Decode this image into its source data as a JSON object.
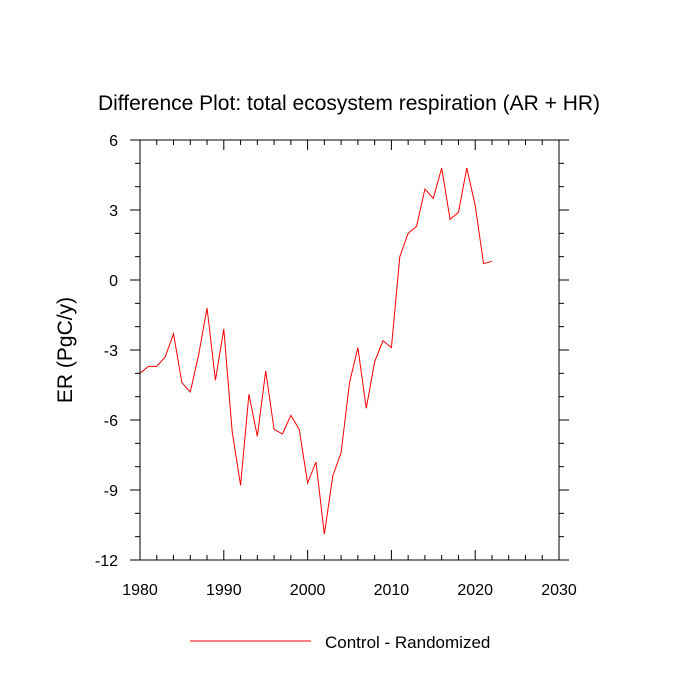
{
  "chart_data": {
    "type": "line",
    "title": "Difference Plot: total ecosystem respiration (AR + HR)",
    "xlabel": "",
    "ylabel": "ER  (PgC/y)",
    "xlim": [
      1980,
      2030
    ],
    "ylim": [
      -12,
      6
    ],
    "x_ticks": [
      1980,
      1990,
      2000,
      2010,
      2020,
      2030
    ],
    "y_ticks": [
      -12,
      -9,
      -6,
      -3,
      0,
      3,
      6
    ],
    "grid": false,
    "legend_position": "bottom-center",
    "series": [
      {
        "name": "Control - Randomized",
        "color": "#ff0000",
        "x": [
          1980,
          1981,
          1982,
          1983,
          1984,
          1985,
          1986,
          1987,
          1988,
          1989,
          1990,
          1991,
          1992,
          1993,
          1994,
          1995,
          1996,
          1997,
          1998,
          1999,
          2000,
          2001,
          2002,
          2003,
          2004,
          2005,
          2006,
          2007,
          2008,
          2009,
          2010,
          2011,
          2012,
          2013,
          2014,
          2015,
          2016,
          2017,
          2018,
          2019,
          2020,
          2021,
          2022
        ],
        "y": [
          -4.0,
          -3.7,
          -3.7,
          -3.3,
          -2.3,
          -4.4,
          -4.8,
          -3.2,
          -1.2,
          -4.3,
          -2.1,
          -6.5,
          -8.8,
          -4.9,
          -6.7,
          -3.9,
          -6.4,
          -6.6,
          -5.8,
          -6.4,
          -8.7,
          -7.8,
          -10.9,
          -8.4,
          -7.4,
          -4.4,
          -2.9,
          -5.5,
          -3.5,
          -2.6,
          -2.9,
          1.0,
          2.0,
          2.3,
          3.9,
          3.5,
          4.8,
          2.6,
          2.9,
          4.8,
          3.2,
          0.7,
          0.8
        ]
      }
    ]
  }
}
